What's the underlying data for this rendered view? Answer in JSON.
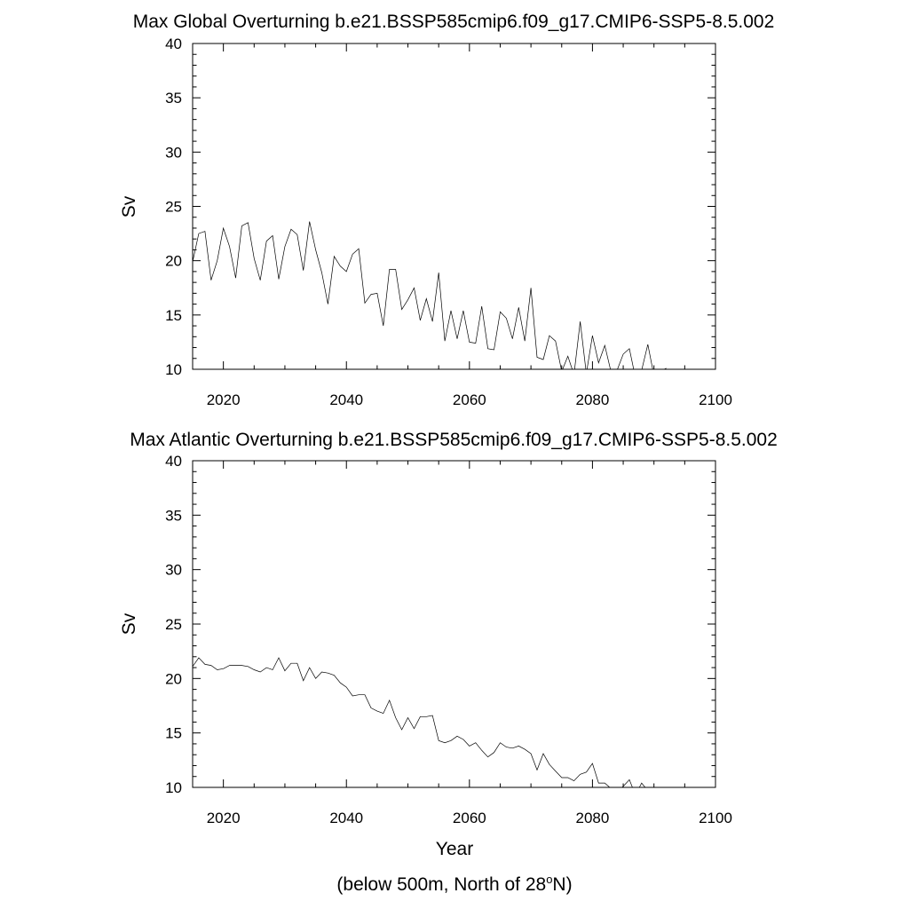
{
  "chart_data": [
    {
      "type": "line",
      "title": "Max Global Overturning b.e21.BSSP585cmip6.f09_g17.CMIP6-SSP5-8.5.002",
      "xlabel": "",
      "ylabel": "Sv",
      "xlim": [
        2015,
        2100
      ],
      "ylim": [
        10,
        40
      ],
      "xticks": [
        2020,
        2040,
        2060,
        2080,
        2100
      ],
      "yticks": [
        10,
        15,
        20,
        25,
        30,
        35,
        40
      ],
      "grid": false,
      "x": [
        2015,
        2016,
        2017,
        2018,
        2019,
        2020,
        2021,
        2022,
        2023,
        2024,
        2025,
        2026,
        2027,
        2028,
        2029,
        2030,
        2031,
        2032,
        2033,
        2034,
        2035,
        2036,
        2037,
        2038,
        2039,
        2040,
        2041,
        2042,
        2043,
        2044,
        2045,
        2046,
        2047,
        2048,
        2049,
        2050,
        2051,
        2052,
        2053,
        2054,
        2055,
        2056,
        2057,
        2058,
        2059,
        2060,
        2061,
        2062,
        2063,
        2064,
        2065,
        2066,
        2067,
        2068,
        2069,
        2070,
        2071,
        2072,
        2073,
        2074,
        2075,
        2076,
        2077,
        2078,
        2079,
        2080,
        2081,
        2082,
        2083,
        2084,
        2085,
        2086,
        2087,
        2088,
        2089,
        2090,
        2091,
        2092
      ],
      "values": [
        19.9,
        22.5,
        22.7,
        18.2,
        20.0,
        23.0,
        21.3,
        18.4,
        23.2,
        23.5,
        20.2,
        18.2,
        21.8,
        22.3,
        18.3,
        21.3,
        22.9,
        22.4,
        19.1,
        23.6,
        21.0,
        18.9,
        16.0,
        20.4,
        19.5,
        19.0,
        20.6,
        21.1,
        16.1,
        16.9,
        17.0,
        14.0,
        19.2,
        19.2,
        15.5,
        16.4,
        17.5,
        14.5,
        16.5,
        14.4,
        18.9,
        12.6,
        15.4,
        12.8,
        15.4,
        12.5,
        12.4,
        15.8,
        11.9,
        11.8,
        15.3,
        14.7,
        12.8,
        15.7,
        12.6,
        17.5,
        11.1,
        10.9,
        13.1,
        12.6,
        9.8,
        11.2,
        9.5,
        14.4,
        9.6,
        13.1,
        10.6,
        12.2,
        9.8,
        9.9,
        11.4,
        11.9,
        9.2,
        9.9,
        12.3,
        9.4,
        9.8,
        10.1
      ]
    },
    {
      "type": "line",
      "title": "Max Atlantic Overturning b.e21.BSSP585cmip6.f09_g17.CMIP6-SSP5-8.5.002",
      "xlabel": "Year",
      "ylabel": "Sv",
      "xlim": [
        2015,
        2100
      ],
      "ylim": [
        10,
        40
      ],
      "xticks": [
        2020,
        2040,
        2060,
        2080,
        2100
      ],
      "yticks": [
        10,
        15,
        20,
        25,
        30,
        35,
        40
      ],
      "grid": false,
      "x": [
        2015,
        2016,
        2017,
        2018,
        2019,
        2020,
        2021,
        2022,
        2023,
        2024,
        2025,
        2026,
        2027,
        2028,
        2029,
        2030,
        2031,
        2032,
        2033,
        2034,
        2035,
        2036,
        2037,
        2038,
        2039,
        2040,
        2041,
        2042,
        2043,
        2044,
        2045,
        2046,
        2047,
        2048,
        2049,
        2050,
        2051,
        2052,
        2053,
        2054,
        2055,
        2056,
        2057,
        2058,
        2059,
        2060,
        2061,
        2062,
        2063,
        2064,
        2065,
        2066,
        2067,
        2068,
        2069,
        2070,
        2071,
        2072,
        2073,
        2074,
        2075,
        2076,
        2077,
        2078,
        2079,
        2080,
        2081,
        2082,
        2083,
        2084,
        2085,
        2086,
        2087,
        2088,
        2089
      ],
      "values": [
        21.1,
        21.9,
        21.3,
        21.2,
        20.8,
        20.9,
        21.2,
        21.2,
        21.2,
        21.1,
        20.8,
        20.6,
        21.0,
        20.8,
        21.9,
        20.7,
        21.4,
        21.4,
        19.8,
        21.0,
        20.0,
        20.6,
        20.5,
        20.3,
        19.6,
        19.2,
        18.4,
        18.5,
        18.5,
        17.3,
        17.0,
        16.8,
        18.0,
        16.4,
        15.3,
        16.4,
        15.4,
        16.5,
        16.5,
        16.6,
        14.3,
        14.1,
        14.3,
        14.7,
        14.4,
        13.8,
        14.1,
        13.4,
        12.8,
        13.2,
        14.1,
        13.7,
        13.6,
        13.8,
        13.5,
        13.1,
        11.6,
        13.1,
        12.1,
        11.5,
        10.9,
        10.9,
        10.6,
        11.2,
        11.4,
        12.2,
        10.4,
        10.4,
        9.9,
        9.6,
        10.1,
        10.7,
        9.3,
        10.4,
        9.7
      ]
    }
  ],
  "footnote": {
    "pre": "(below 500m, North of 28",
    "sup": "o",
    "post": "N)"
  }
}
